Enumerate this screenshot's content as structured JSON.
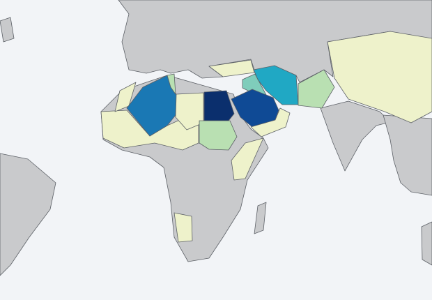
{
  "map": {
    "type": "choropleth",
    "background_color": "#f2f4f7",
    "no_data_color": "#c9cacc",
    "scale_colors": [
      "#eef2cb",
      "#b9e0b2",
      "#7fcdbb",
      "#20a8c4",
      "#1a78b4",
      "#0f4a95",
      "#0b2f6d"
    ],
    "regions": [
      {
        "id": "algeria",
        "level": 4
      },
      {
        "id": "egypt",
        "level": 6
      },
      {
        "id": "saudi-arabia",
        "level": 5
      },
      {
        "id": "iran",
        "level": 3
      },
      {
        "id": "iraq",
        "level": 2
      },
      {
        "id": "pakistan",
        "level": 1
      },
      {
        "id": "sudan",
        "level": 1
      },
      {
        "id": "tunisia",
        "level": 1
      },
      {
        "id": "libya",
        "level": 0
      },
      {
        "id": "china",
        "level": 0
      },
      {
        "id": "turkey",
        "level": 0
      },
      {
        "id": "sahel",
        "level": 0
      },
      {
        "id": "yemen-oman",
        "level": 0
      },
      {
        "id": "horn-of-africa",
        "level": 0
      },
      {
        "id": "southern-africa-east",
        "level": 0
      },
      {
        "id": "morocco",
        "level": 0
      }
    ]
  }
}
